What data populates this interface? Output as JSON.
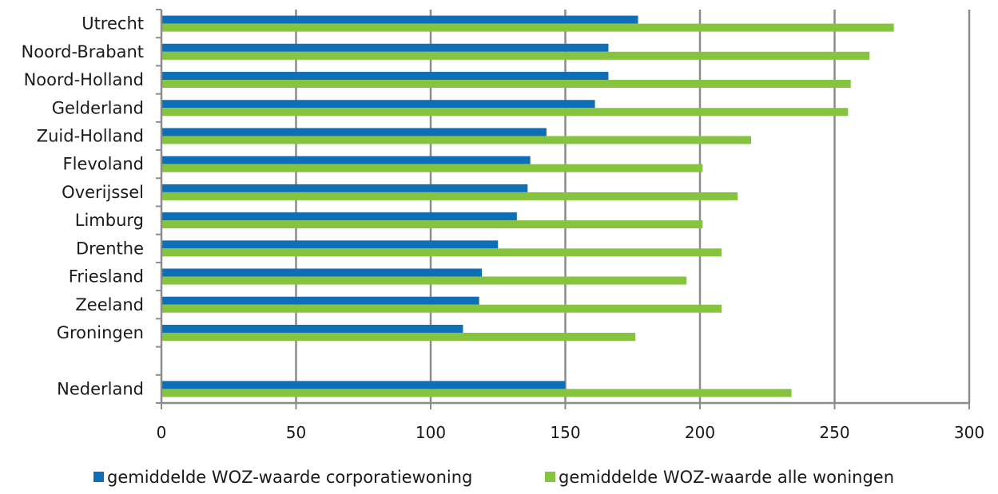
{
  "chart_data": {
    "type": "bar",
    "orientation": "horizontal",
    "categories": [
      "Utrecht",
      "Noord-Brabant",
      "Noord-Holland",
      "Gelderland",
      "Zuid-Holland",
      "Flevoland",
      "Overijssel",
      "Limburg",
      "Drenthe",
      "Friesland",
      "Zeeland",
      "Groningen",
      "",
      "Nederland"
    ],
    "series": [
      {
        "name": "gemiddelde WOZ-waarde corporatiewoning",
        "color": "#0f6fb6",
        "values": [
          177,
          166,
          166,
          161,
          143,
          137,
          136,
          132,
          125,
          119,
          118,
          112,
          null,
          150
        ]
      },
      {
        "name": "gemiddelde WOZ-waarde alle woningen",
        "color": "#86c33f",
        "values": [
          272,
          263,
          256,
          255,
          219,
          201,
          214,
          201,
          208,
          195,
          208,
          176,
          null,
          234
        ]
      }
    ],
    "xlim": [
      0,
      300
    ],
    "xticks": [
      "0",
      "50",
      "100",
      "150",
      "200",
      "250",
      "300"
    ],
    "grid": true,
    "legend_position": "bottom",
    "title": "",
    "xlabel": "",
    "ylabel": ""
  }
}
